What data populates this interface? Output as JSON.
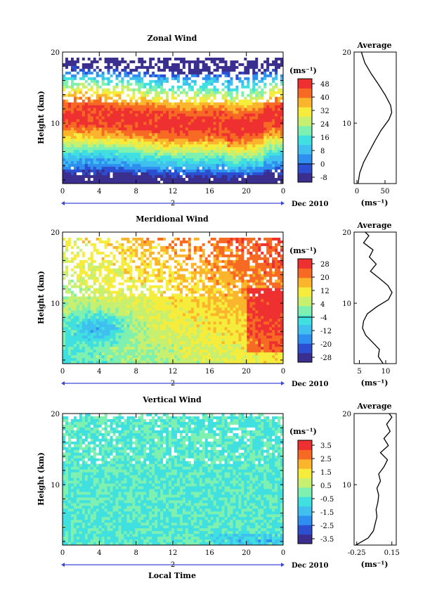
{
  "colors": {
    "scale": [
      "#3a2f8f",
      "#2b4fd0",
      "#2f8ff0",
      "#3fc0ef",
      "#40e0e0",
      "#7ef0b0",
      "#c8f070",
      "#f5ec3c",
      "#fbb52c",
      "#f76a24",
      "#ef3030"
    ],
    "line": "#000000",
    "axis_blue": "#3a4ad0"
  },
  "figure": {
    "xlabel": "Local Time",
    "date_label": "Dec 2010",
    "day_label": "2"
  },
  "chart_data": [
    {
      "type": "heatmap",
      "title": "Zonal Wind",
      "xlabel": "Local Time",
      "ylabel": "Height (km)",
      "x_ticks": [
        "0",
        "4",
        "8",
        "12",
        "16",
        "20",
        "0"
      ],
      "y_ticks": [
        "20",
        "10"
      ],
      "xlim": [
        0,
        24
      ],
      "ylim": [
        1.5,
        20
      ],
      "unit": "(ms⁻¹)",
      "colorbar": {
        "levels": [
          -8,
          0,
          8,
          16,
          24,
          32,
          40,
          48
        ],
        "labels": [
          "48",
          "40",
          "32",
          "24",
          "16",
          "8",
          "0",
          "-8"
        ]
      },
      "profile": {
        "title": "Average",
        "xlabel": "(ms⁻¹)",
        "x_ticks": [
          "0",
          "50"
        ],
        "xlim": [
          -5,
          70
        ],
        "heights": [
          1.5,
          3,
          4.5,
          6,
          7.5,
          9,
          10.5,
          11.5,
          12.5,
          14,
          15.5,
          17,
          18.5,
          20
        ],
        "values": [
          2,
          5,
          12,
          22,
          32,
          43,
          57,
          62,
          60,
          50,
          38,
          25,
          14,
          8
        ]
      }
    },
    {
      "type": "heatmap",
      "title": "Meridional Wind",
      "xlabel": "Local Time",
      "ylabel": "Height (km)",
      "x_ticks": [
        "0",
        "4",
        "8",
        "12",
        "16",
        "20",
        "0"
      ],
      "y_ticks": [
        "20",
        "10"
      ],
      "xlim": [
        0,
        24
      ],
      "ylim": [
        1.5,
        20
      ],
      "unit": "(ms⁻¹)",
      "colorbar": {
        "levels": [
          -28,
          -20,
          -12,
          -4,
          4,
          12,
          20,
          28
        ],
        "labels": [
          "28",
          "20",
          "12",
          "4",
          "-4",
          "-12",
          "-20",
          "-28"
        ]
      },
      "profile": {
        "title": "Average",
        "xlabel": "(ms⁻¹)",
        "x_ticks": [
          "5",
          "10"
        ],
        "xlim": [
          4,
          12
        ],
        "heights": [
          1.5,
          2.5,
          3.5,
          4.5,
          5.5,
          6.5,
          7.5,
          8.5,
          9.5,
          10.5,
          11.5,
          12.5,
          13.5,
          14.5,
          15.5,
          16.5,
          17.5,
          18.5,
          19.5,
          20
        ],
        "values": [
          9.5,
          8.6,
          8.8,
          7.5,
          6.2,
          5.6,
          5.8,
          6.5,
          8.3,
          10.5,
          11.2,
          10.4,
          8.8,
          7.1,
          8.2,
          6.9,
          7.6,
          5.8,
          6.8,
          6.1
        ]
      }
    },
    {
      "type": "heatmap",
      "title": "Vertical Wind",
      "xlabel": "Local Time",
      "ylabel": "Height (km)",
      "x_ticks": [
        "0",
        "4",
        "8",
        "12",
        "16",
        "20",
        "0"
      ],
      "y_ticks": [
        "20",
        "10"
      ],
      "xlim": [
        0,
        24
      ],
      "ylim": [
        1.5,
        20
      ],
      "unit": "(ms⁻¹)",
      "colorbar": {
        "levels": [
          -3.5,
          -2.5,
          -1.5,
          -0.5,
          0.5,
          1.5,
          2.5,
          3.5
        ],
        "labels": [
          "3.5",
          "2.5",
          "1.5",
          "0.5",
          "-0.5",
          "-1.5",
          "-2.5",
          "-3.5"
        ]
      },
      "profile": {
        "title": "Average",
        "xlabel": "(ms⁻¹)",
        "x_ticks": [
          "-0.25",
          "0.15"
        ],
        "xlim": [
          -0.28,
          0.2
        ],
        "heights": [
          1.5,
          2.5,
          3.5,
          4.5,
          5.5,
          6.5,
          7.5,
          8.5,
          9.5,
          10.5,
          11.5,
          12.5,
          13.5,
          14.5,
          15.5,
          16.5,
          17.5,
          18.5,
          19.5,
          20
        ],
        "values": [
          -0.26,
          -0.12,
          -0.06,
          -0.04,
          -0.02,
          -0.03,
          -0.01,
          0.0,
          -0.02,
          0.02,
          0.0,
          0.06,
          0.1,
          0.02,
          0.11,
          0.06,
          0.13,
          0.09,
          0.15,
          0.12
        ]
      }
    }
  ]
}
